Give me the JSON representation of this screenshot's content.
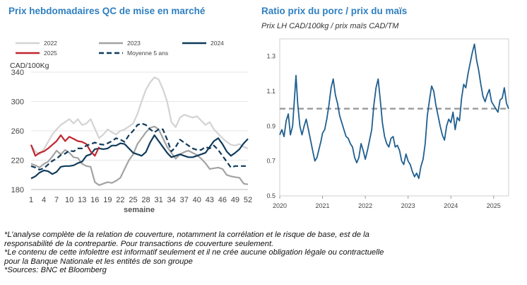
{
  "left": {
    "title": "Prix hebdomadaires QC de mise en marché",
    "chart_data": {
      "type": "line",
      "ylabel": "CAD/100Kg",
      "xlabel": "semaine",
      "ylim": [
        180,
        340
      ],
      "yticks": [
        180,
        220,
        260,
        300,
        340
      ],
      "xlim": [
        1,
        52
      ],
      "xticks": [
        1,
        4,
        7,
        10,
        13,
        16,
        19,
        22,
        25,
        28,
        31,
        34,
        37,
        40,
        43,
        46,
        49,
        52
      ],
      "legend": [
        "2022",
        "2023",
        "2024",
        "2025",
        "Moyenne 5 ans"
      ],
      "series": [
        {
          "name": "2022",
          "color": "#d3d3d3",
          "style": "solid",
          "x": [
            1,
            2,
            3,
            4,
            5,
            6,
            7,
            8,
            9,
            10,
            11,
            12,
            13,
            14,
            15,
            16,
            17,
            18,
            19,
            20,
            21,
            22,
            23,
            24,
            25,
            26,
            27,
            28,
            29,
            30,
            31,
            32,
            33,
            34,
            35,
            36,
            37,
            38,
            39,
            40,
            41,
            42,
            43,
            44,
            45,
            46,
            47,
            48,
            49,
            50,
            51,
            52
          ],
          "y": [
            240,
            232,
            228,
            235,
            245,
            255,
            262,
            268,
            272,
            276,
            270,
            276,
            268,
            270,
            276,
            263,
            250,
            255,
            262,
            258,
            255,
            260,
            262,
            266,
            270,
            283,
            300,
            316,
            326,
            333,
            330,
            317,
            300,
            272,
            265,
            278,
            282,
            280,
            278,
            280,
            274,
            268,
            272,
            262,
            256,
            250,
            245,
            241,
            240,
            242,
            238,
            236
          ]
        },
        {
          "name": "2023",
          "color": "#a3a3a3",
          "style": "solid",
          "x": [
            1,
            2,
            3,
            4,
            5,
            6,
            7,
            8,
            9,
            10,
            11,
            12,
            13,
            14,
            15,
            16,
            17,
            18,
            19,
            20,
            21,
            22,
            23,
            24,
            25,
            26,
            27,
            28,
            29,
            30,
            31,
            32,
            33,
            34,
            35,
            36,
            37,
            38,
            39,
            40,
            41,
            42,
            43,
            44,
            45,
            46,
            47,
            48,
            49,
            50,
            51,
            52
          ],
          "y": [
            215,
            213,
            210,
            215,
            218,
            225,
            233,
            228,
            234,
            230,
            224,
            223,
            215,
            212,
            211,
            190,
            186,
            188,
            190,
            189,
            192,
            196,
            208,
            220,
            228,
            242,
            250,
            258,
            264,
            266,
            262,
            250,
            238,
            230,
            222,
            228,
            231,
            233,
            230,
            227,
            222,
            216,
            208,
            209,
            210,
            208,
            200,
            198,
            197,
            196,
            188,
            187
          ]
        },
        {
          "name": "2024",
          "color": "#0f3b5c",
          "style": "solid",
          "x": [
            1,
            2,
            3,
            4,
            5,
            6,
            7,
            8,
            9,
            10,
            11,
            12,
            13,
            14,
            15,
            16,
            17,
            18,
            19,
            20,
            21,
            22,
            23,
            24,
            25,
            26,
            27,
            28,
            29,
            30,
            31,
            32,
            33,
            34,
            35,
            36,
            37,
            38,
            39,
            40,
            41,
            42,
            43,
            44,
            45,
            46,
            47,
            48,
            49,
            50,
            51,
            52
          ],
          "y": [
            195,
            198,
            203,
            206,
            205,
            201,
            204,
            211,
            212,
            212,
            213,
            216,
            218,
            226,
            228,
            235,
            236,
            235,
            236,
            240,
            240,
            243,
            242,
            236,
            230,
            228,
            226,
            231,
            244,
            254,
            246,
            238,
            230,
            224,
            226,
            228,
            226,
            224,
            224,
            226,
            228,
            230,
            238,
            246,
            250,
            242,
            232,
            226,
            230,
            235,
            243,
            249
          ]
        },
        {
          "name": "2025",
          "color": "#c0262f",
          "style": "solid",
          "x": [
            1,
            2,
            3,
            4,
            5,
            6,
            7,
            8,
            9,
            10,
            11,
            12,
            13,
            14,
            15,
            16,
            17
          ],
          "y": [
            241,
            226,
            230,
            232,
            236,
            241,
            246,
            254,
            246,
            252,
            249,
            246,
            245,
            242,
            232,
            226,
            238
          ]
        },
        {
          "name": "Moyenne 5 ans",
          "color": "#0f3b5c",
          "style": "dashed",
          "x": [
            1,
            2,
            3,
            4,
            5,
            6,
            7,
            8,
            9,
            10,
            11,
            12,
            13,
            14,
            15,
            16,
            17,
            18,
            19,
            20,
            21,
            22,
            23,
            24,
            25,
            26,
            27,
            28,
            29,
            30,
            31,
            32,
            33,
            34,
            35,
            36,
            37,
            38,
            39,
            40,
            41,
            42,
            43,
            44,
            45,
            46,
            47,
            48,
            49,
            50,
            51,
            52
          ],
          "y": [
            212,
            210,
            207,
            209,
            214,
            219,
            222,
            227,
            229,
            233,
            232,
            236,
            236,
            240,
            242,
            244,
            242,
            241,
            243,
            246,
            250,
            248,
            245,
            254,
            260,
            268,
            270,
            268,
            262,
            258,
            262,
            262,
            248,
            232,
            238,
            248,
            244,
            240,
            236,
            234,
            234,
            238,
            236,
            240,
            234,
            226,
            218,
            210,
            212,
            212,
            212,
            212
          ]
        }
      ]
    }
  },
  "right": {
    "title": "Ratio prix du porc / prix du maïs",
    "subtitle": "Prix LH CAD/100kg / prix maïs CAD/TM",
    "chart_data": {
      "type": "line",
      "xlim": [
        2020.0,
        2025.35
      ],
      "ylim": [
        0.5,
        1.4
      ],
      "yticks": [
        0.5,
        0.7,
        0.9,
        1.1,
        1.3
      ],
      "xticks": [
        2020,
        2021,
        2022,
        2023,
        2024,
        2025
      ],
      "reference_line": 1.0,
      "series": [
        {
          "name": "ratio",
          "color": "#1f5f8f",
          "x": [
            2020.0,
            2020.05,
            2020.1,
            2020.15,
            2020.2,
            2020.25,
            2020.3,
            2020.35,
            2020.38,
            2020.42,
            2020.47,
            2020.52,
            2020.57,
            2020.62,
            2020.67,
            2020.72,
            2020.77,
            2020.82,
            2020.87,
            2020.92,
            2020.97,
            2021.0,
            2021.05,
            2021.1,
            2021.15,
            2021.2,
            2021.25,
            2021.3,
            2021.35,
            2021.4,
            2021.45,
            2021.5,
            2021.55,
            2021.6,
            2021.65,
            2021.7,
            2021.75,
            2021.8,
            2021.85,
            2021.9,
            2021.95,
            2022.0,
            2022.05,
            2022.1,
            2022.15,
            2022.2,
            2022.25,
            2022.3,
            2022.35,
            2022.4,
            2022.45,
            2022.5,
            2022.55,
            2022.6,
            2022.65,
            2022.7,
            2022.75,
            2022.8,
            2022.85,
            2022.9,
            2022.95,
            2023.0,
            2023.05,
            2023.1,
            2023.15,
            2023.2,
            2023.25,
            2023.3,
            2023.35,
            2023.4,
            2023.45,
            2023.5,
            2023.55,
            2023.6,
            2023.65,
            2023.7,
            2023.75,
            2023.8,
            2023.85,
            2023.9,
            2023.95,
            2024.0,
            2024.05,
            2024.1,
            2024.15,
            2024.2,
            2024.25,
            2024.3,
            2024.35,
            2024.4,
            2024.45,
            2024.5,
            2024.55,
            2024.6,
            2024.65,
            2024.7,
            2024.75,
            2024.8,
            2024.85,
            2024.9,
            2024.95,
            2025.0,
            2025.05,
            2025.1,
            2025.15,
            2025.2,
            2025.25,
            2025.3,
            2025.35
          ],
          "y": [
            0.85,
            0.88,
            0.84,
            0.93,
            0.97,
            0.85,
            0.9,
            1.08,
            1.19,
            1.03,
            0.9,
            0.85,
            0.9,
            0.94,
            0.88,
            0.82,
            0.76,
            0.7,
            0.72,
            0.77,
            0.82,
            0.86,
            0.88,
            0.94,
            1.02,
            1.12,
            1.17,
            1.08,
            1.03,
            0.96,
            0.92,
            0.88,
            0.84,
            0.83,
            0.8,
            0.78,
            0.72,
            0.69,
            0.72,
            0.8,
            0.76,
            0.71,
            0.76,
            0.82,
            0.88,
            1.02,
            1.12,
            1.17,
            1.05,
            0.92,
            0.84,
            0.8,
            0.78,
            0.83,
            0.84,
            0.78,
            0.79,
            0.76,
            0.7,
            0.68,
            0.74,
            0.7,
            0.68,
            0.64,
            0.61,
            0.63,
            0.6,
            0.67,
            0.71,
            0.8,
            0.96,
            1.05,
            1.13,
            1.1,
            1.02,
            0.96,
            0.9,
            0.85,
            0.82,
            0.9,
            0.94,
            0.92,
            0.98,
            0.88,
            0.95,
            0.93,
            1.06,
            1.14,
            1.12,
            1.2,
            1.26,
            1.32,
            1.37,
            1.28,
            1.22,
            1.14,
            1.07,
            1.04,
            1.08,
            1.11,
            1.04,
            1.02,
            1.0,
            0.98,
            1.05,
            1.06,
            1.12,
            1.03,
            1.0
          ]
        }
      ]
    }
  },
  "notes": [
    "*L’analyse complète de la relation de couverture, notamment la corrélation et le risque de base, est de la",
    "responsabilité de la contrepartie. Pour transactions de couverture seulement.",
    "*Le contenu de cette infolettre est informatif seulement et il ne crée aucune obligation légale ou contractuelle",
    "pour la Banque Nationale et les entités de son groupe",
    "*Sources: BNC et Bloomberg"
  ]
}
